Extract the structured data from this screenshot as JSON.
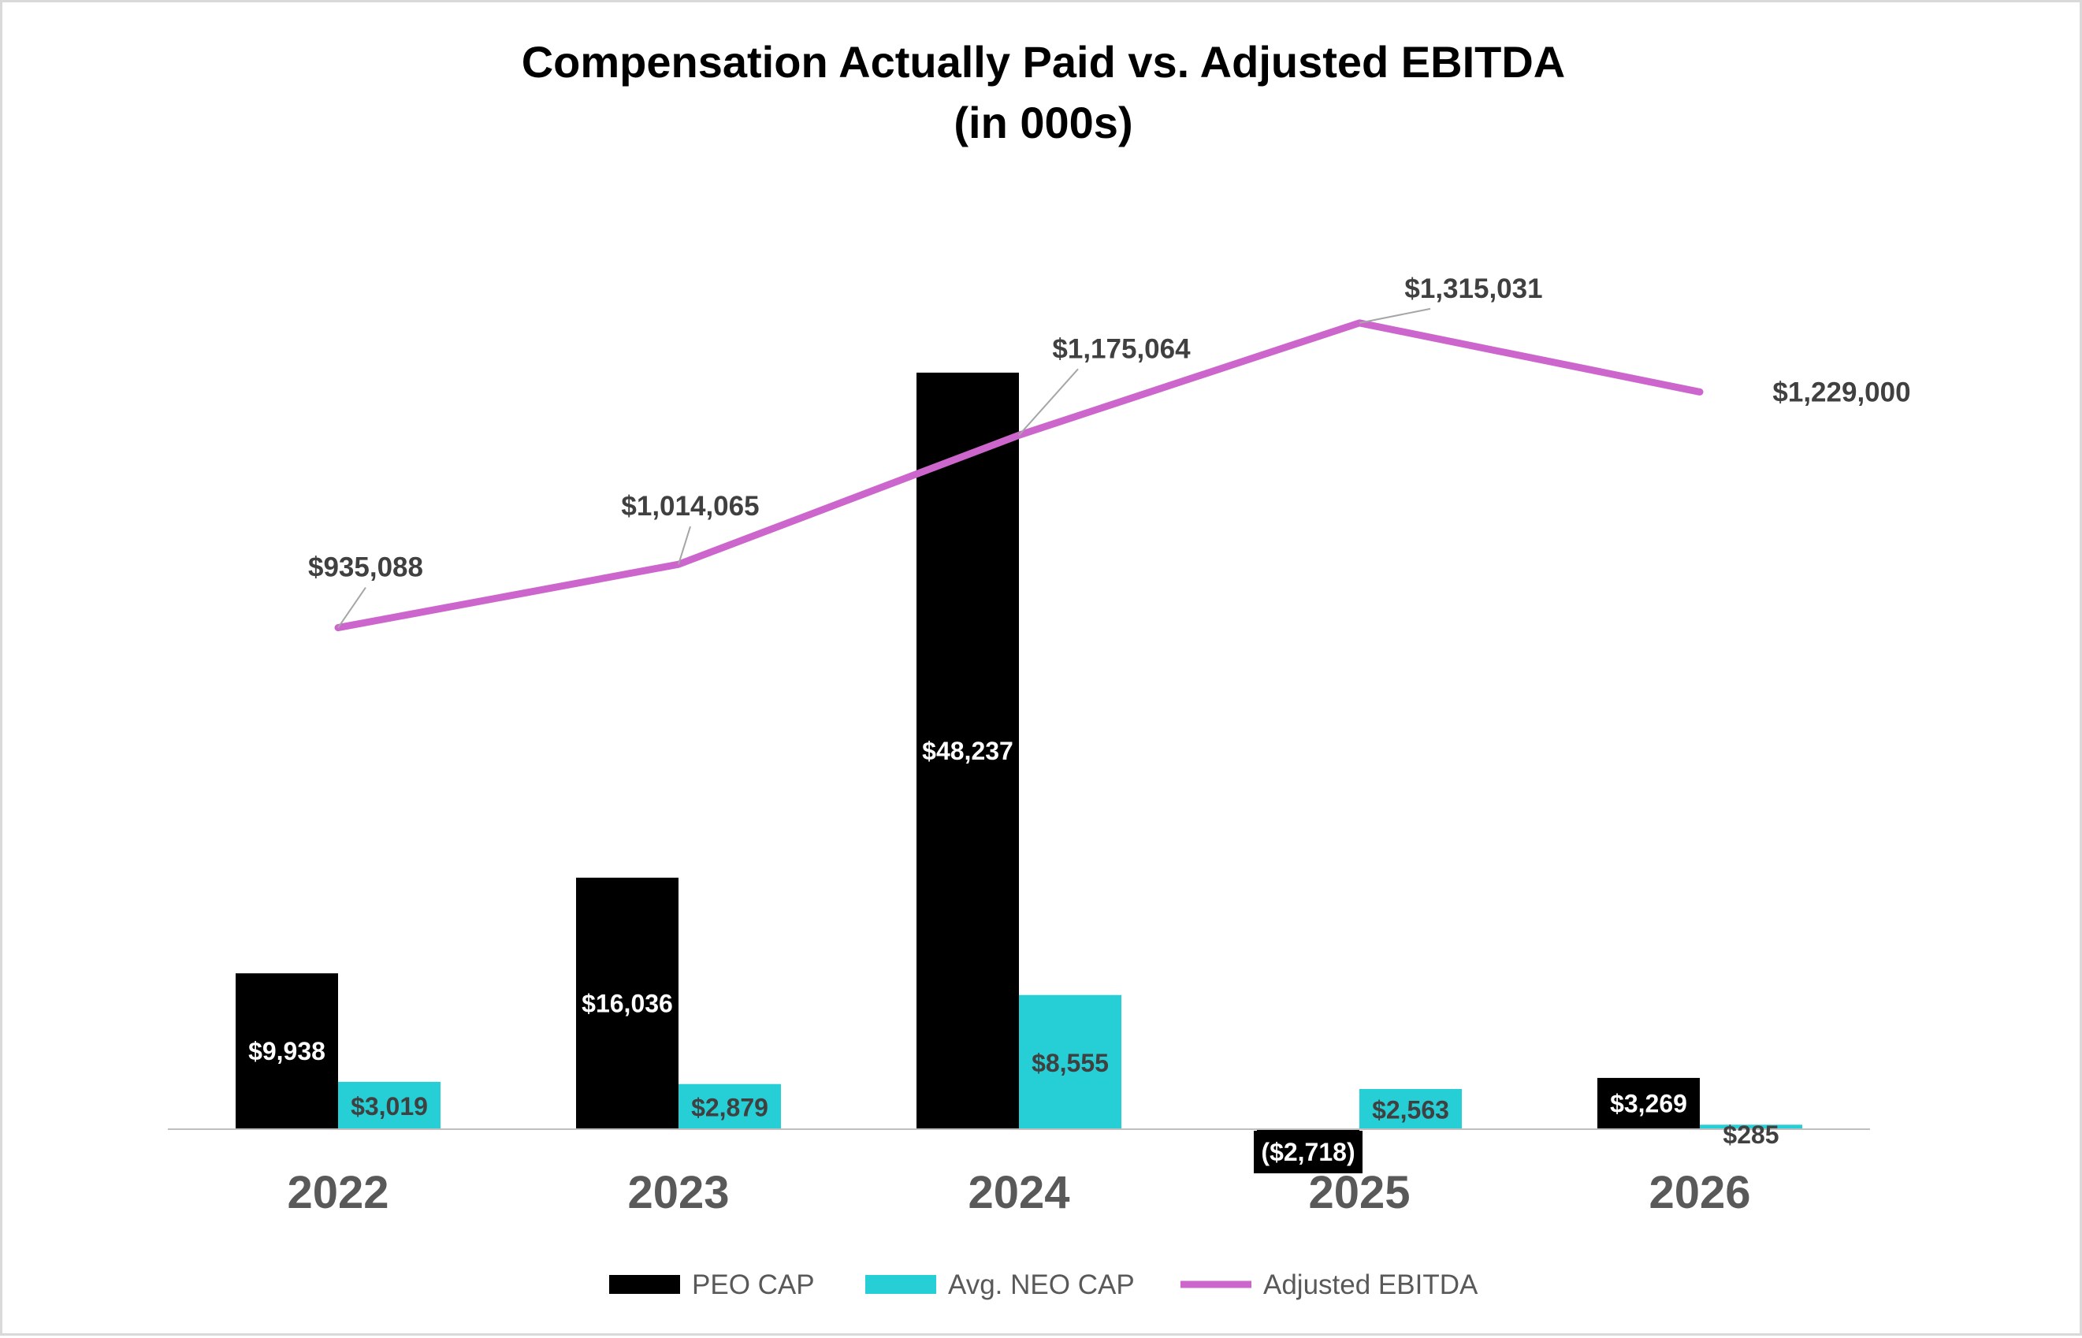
{
  "chart_data": {
    "type": "bar",
    "title": "Compensation Actually Paid vs. Adjusted EBITDA",
    "subtitle": "(in 000s)",
    "categories": [
      "2022",
      "2023",
      "2024",
      "2025",
      "2026"
    ],
    "series": [
      {
        "name": "PEO CAP",
        "type": "bar",
        "axis": "primary",
        "color": "#000000",
        "values": [
          9938,
          16036,
          48237,
          -2718,
          3269
        ],
        "labels": [
          "$9,938",
          "$16,036",
          "$48,237",
          "($2,718)",
          "$3,269"
        ]
      },
      {
        "name": "Avg. NEO CAP",
        "type": "bar",
        "axis": "primary",
        "color": "#26CED6",
        "values": [
          3019,
          2879,
          8555,
          2563,
          285
        ],
        "labels": [
          "$3,019",
          "$2,879",
          "$8,555",
          "$2,563",
          "$285"
        ]
      },
      {
        "name": "Adjusted EBITDA",
        "type": "line",
        "axis": "secondary",
        "color": "#CC66CC",
        "values": [
          935088,
          1014065,
          1175064,
          1315031,
          1229000
        ],
        "labels": [
          "$935,088",
          "$1,014,065",
          "$1,175,064",
          "$1,315,031",
          "$1,229,000"
        ]
      }
    ],
    "ylim": [
      -3300,
      52000
    ],
    "y2lim": [
      300000,
      1420000
    ],
    "grid": false,
    "legend_position": "bottom"
  }
}
